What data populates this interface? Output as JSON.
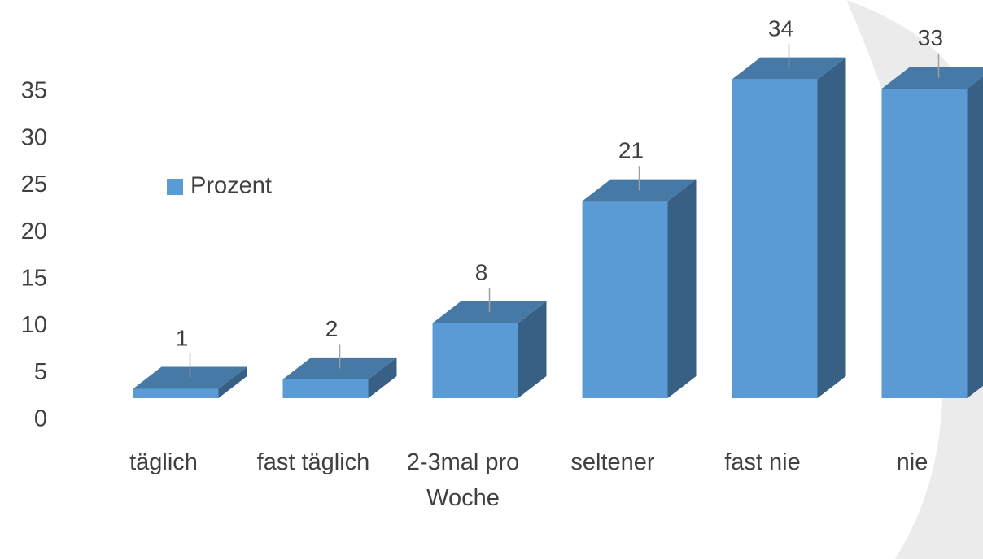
{
  "chart_data": {
    "type": "bar3d",
    "categories": [
      "täglich",
      "fast täglich",
      "2-3mal pro Woche",
      "seltener",
      "fast nie",
      "nie"
    ],
    "series": [
      {
        "name": "Prozent",
        "color": "#5b9bd5",
        "values": [
          1,
          2,
          8,
          21,
          34,
          33
        ]
      }
    ],
    "ylim": [
      0,
      35
    ],
    "yticks": [
      0,
      5,
      10,
      15,
      20,
      25,
      30,
      35
    ],
    "grid": false,
    "legend": "left"
  }
}
